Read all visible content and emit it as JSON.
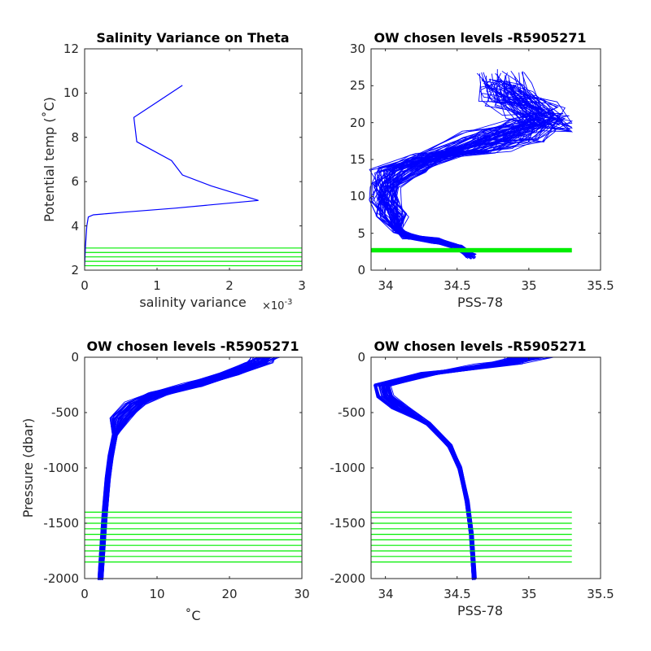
{
  "colors": {
    "profile": "#0000ff",
    "level": "#00ee00",
    "axis": "#262626"
  },
  "chart_data": [
    {
      "type": "line",
      "title": "Salinity Variance on Theta",
      "xlabel": "salinity variance",
      "x_exponent": "×10",
      "x_exponent_power": "-3",
      "ylabel": "Potential temp (˚C)",
      "xlim": [
        0,
        3
      ],
      "ylim": [
        2,
        12
      ],
      "xticks": [
        "0",
        "1",
        "2",
        "3"
      ],
      "yticks": [
        "2",
        "4",
        "6",
        "8",
        "10",
        "12"
      ],
      "series": [
        {
          "x": [
            1.35,
            0.68,
            0.72,
            1.2,
            1.35,
            1.75,
            2.4,
            1.25,
            0.55,
            0.3,
            0.12,
            0.05,
            0.03,
            0.01,
            0.0
          ],
          "y": [
            10.35,
            8.9,
            7.8,
            6.95,
            6.3,
            5.8,
            5.15,
            4.8,
            4.62,
            4.55,
            4.5,
            4.4,
            4.0,
            3.0,
            2.2
          ]
        }
      ],
      "level_lines": {
        "y": [
          2.2,
          2.4,
          2.6,
          2.8,
          3.0
        ],
        "x_range": [
          0,
          3
        ]
      }
    },
    {
      "type": "line",
      "title": "OW chosen levels -R5905271",
      "xlabel": "PSS-78",
      "xlim": [
        33.9,
        35.5
      ],
      "ylim": [
        0,
        30
      ],
      "xticks": [
        "34",
        "34.5",
        "35",
        "35.5"
      ],
      "yticks": [
        "0",
        "5",
        "10",
        "15",
        "20",
        "25",
        "30"
      ],
      "profile_envelope": [
        {
          "s": 34.6,
          "y": 1.9
        },
        {
          "s": 34.5,
          "y": 3.2
        },
        {
          "s": 34.35,
          "y": 4.0
        },
        {
          "s": 34.15,
          "y": 4.6
        },
        {
          "s": 34.08,
          "y": 5.5
        },
        {
          "s": 34.05,
          "y": 7.5
        },
        {
          "s": 34.0,
          "y": 9.5
        },
        {
          "s": 34.0,
          "y": 11.5
        },
        {
          "s": 34.1,
          "y": 13.5
        },
        {
          "s": 34.35,
          "y": 15.5
        },
        {
          "s": 34.7,
          "y": 17.5
        },
        {
          "s": 35.0,
          "y": 19.0
        },
        {
          "s": 35.15,
          "y": 20.5
        },
        {
          "s": 35.0,
          "y": 22.0
        },
        {
          "s": 34.85,
          "y": 24.0
        },
        {
          "s": 34.8,
          "y": 25.5
        }
      ],
      "level_band": {
        "y": [
          2.4,
          3.0
        ],
        "x_range": [
          33.9,
          35.3
        ]
      }
    },
    {
      "type": "line",
      "title": "OW chosen levels -R5905271",
      "xlabel": "˚C",
      "ylabel": "Pressure (dbar)",
      "xlim": [
        0,
        30
      ],
      "ylim": [
        -2000,
        0
      ],
      "xticks": [
        "0",
        "10",
        "20",
        "30"
      ],
      "yticks": [
        "-2000",
        "-1500",
        "-1000",
        "-500",
        "0"
      ],
      "profile_envelope": [
        {
          "x": 25,
          "y": 0
        },
        {
          "x": 24,
          "y": -50
        },
        {
          "x": 20,
          "y": -150
        },
        {
          "x": 15,
          "y": -250
        },
        {
          "x": 10,
          "y": -330
        },
        {
          "x": 7,
          "y": -420
        },
        {
          "x": 5,
          "y": -550
        },
        {
          "x": 4.2,
          "y": -700
        },
        {
          "x": 3.6,
          "y": -900
        },
        {
          "x": 3.2,
          "y": -1100
        },
        {
          "x": 2.8,
          "y": -1400
        },
        {
          "x": 2.5,
          "y": -1700
        },
        {
          "x": 2.2,
          "y": -2000
        }
      ],
      "level_lines": {
        "y": [
          -1400,
          -1450,
          -1500,
          -1550,
          -1600,
          -1650,
          -1700,
          -1750,
          -1800,
          -1850
        ],
        "x_range": [
          0,
          30
        ]
      }
    },
    {
      "type": "line",
      "title": "OW chosen levels -R5905271",
      "xlabel": "PSS-78",
      "xlim": [
        33.9,
        35.5
      ],
      "ylim": [
        -2000,
        0
      ],
      "xticks": [
        "34",
        "34.5",
        "35",
        "35.5"
      ],
      "yticks": [
        "-2000",
        "-1500",
        "-1000",
        "-500",
        "0"
      ],
      "profile_envelope": [
        {
          "s": 35.0,
          "y": 0
        },
        {
          "s": 34.8,
          "y": -60
        },
        {
          "s": 34.3,
          "y": -150
        },
        {
          "s": 33.98,
          "y": -250
        },
        {
          "s": 34.0,
          "y": -350
        },
        {
          "s": 34.1,
          "y": -450
        },
        {
          "s": 34.3,
          "y": -600
        },
        {
          "s": 34.45,
          "y": -800
        },
        {
          "s": 34.52,
          "y": -1000
        },
        {
          "s": 34.57,
          "y": -1300
        },
        {
          "s": 34.6,
          "y": -1600
        },
        {
          "s": 34.62,
          "y": -2000
        }
      ],
      "level_lines": {
        "y": [
          -1400,
          -1450,
          -1500,
          -1550,
          -1600,
          -1650,
          -1700,
          -1750,
          -1800,
          -1850
        ],
        "x_range": [
          33.9,
          35.3
        ]
      }
    }
  ]
}
